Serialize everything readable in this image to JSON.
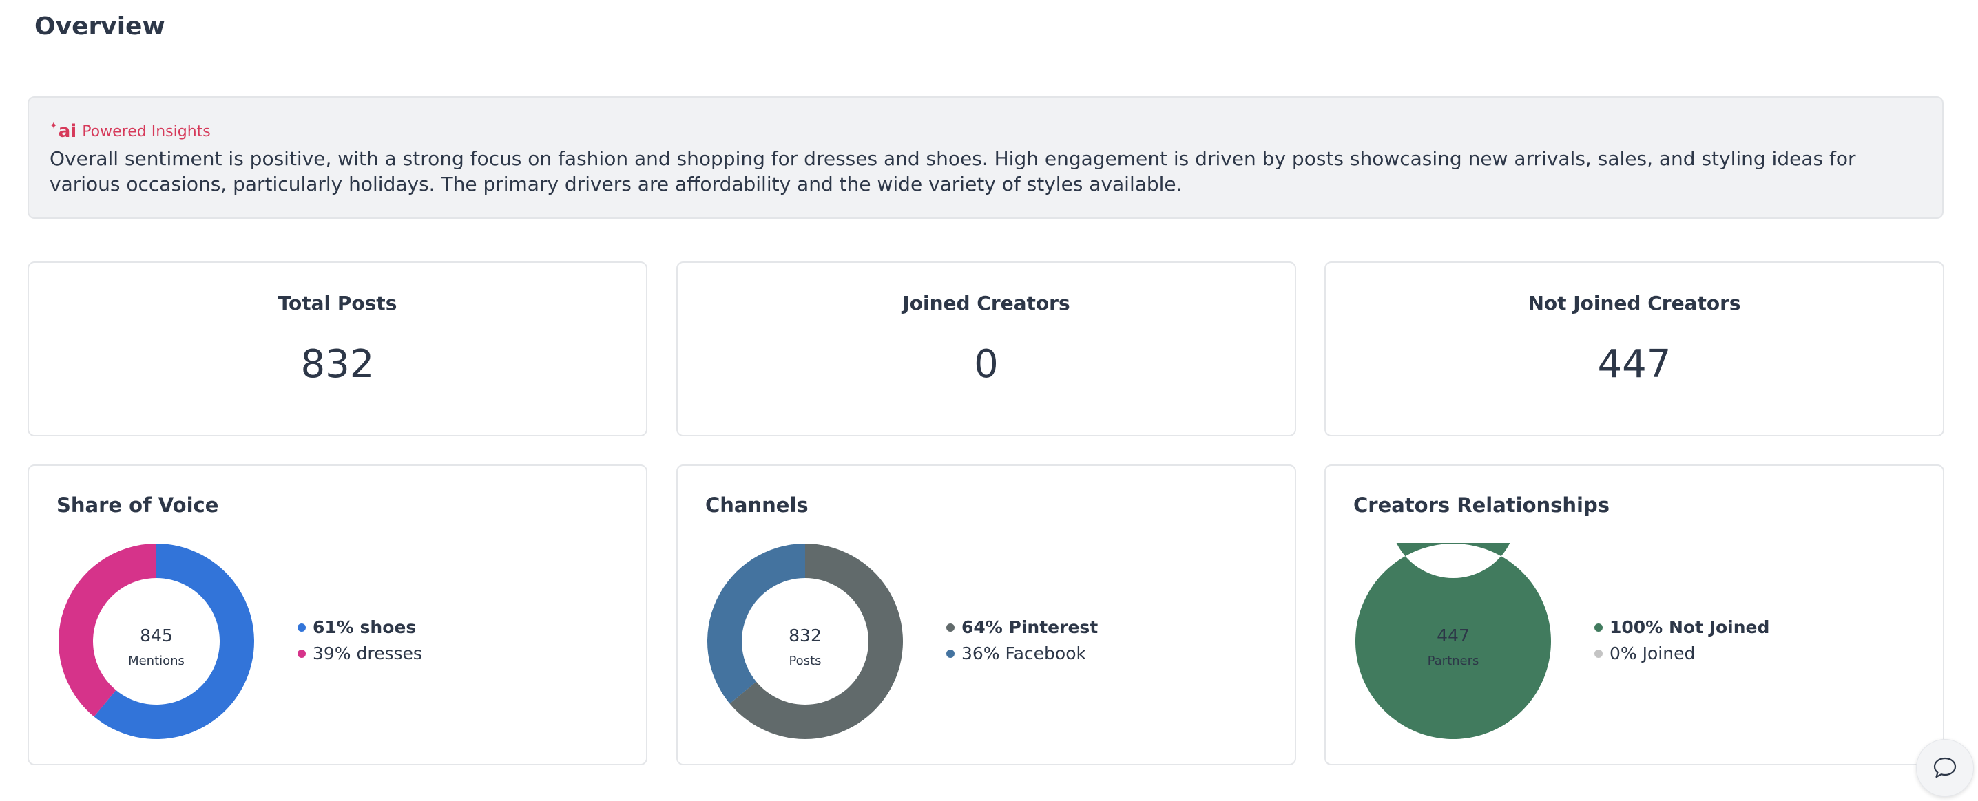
{
  "page": {
    "title": "Overview"
  },
  "insights": {
    "icon": "ai-sparkle-icon",
    "icon_text": "ai",
    "label": "Powered Insights",
    "text": "Overall sentiment is positive, with a strong focus on fashion and shopping for dresses and shoes. High engagement is driven by posts showcasing new arrivals, sales, and styling ideas for various occasions, particularly holidays. The primary drivers are affordability and the wide variety of styles available."
  },
  "stats": [
    {
      "label": "Total Posts",
      "value": "832"
    },
    {
      "label": "Joined Creators",
      "value": "0"
    },
    {
      "label": "Not Joined Creators",
      "value": "447"
    }
  ],
  "chart_data": [
    {
      "type": "pie",
      "title": "Share of Voice",
      "center_value": "845",
      "center_label": "Mentions",
      "slices": [
        {
          "label": "61% shoes",
          "value": 61,
          "color": "#3274d9"
        },
        {
          "label": "39% dresses",
          "value": 39,
          "color": "#d6338a"
        }
      ]
    },
    {
      "type": "pie",
      "title": "Channels",
      "center_value": "832",
      "center_label": "Posts",
      "slices": [
        {
          "label": "64% Pinterest",
          "value": 64,
          "color": "#616a6b"
        },
        {
          "label": "36% Facebook",
          "value": 36,
          "color": "#44739f"
        }
      ]
    },
    {
      "type": "pie",
      "title": "Creators Relationships",
      "center_value": "447",
      "center_label": "Partners",
      "slices": [
        {
          "label": "100% Not Joined",
          "value": 100,
          "color": "#417b5e"
        },
        {
          "label": "0% Joined",
          "value": 0,
          "color": "#c4c4c4"
        }
      ]
    }
  ],
  "chat": {
    "icon": "chat-bubble-icon"
  }
}
